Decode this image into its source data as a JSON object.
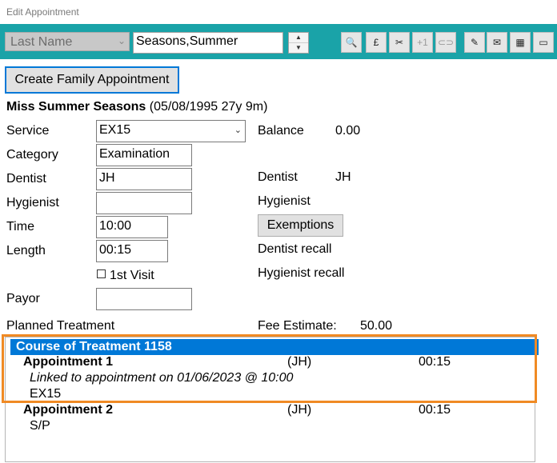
{
  "window": {
    "title": "Edit Appointment"
  },
  "toolbar": {
    "search_type": "Last Name",
    "search_value": "Seasons,Summer",
    "buttons": [
      {
        "name": "search-icon",
        "glyph": "🔍"
      },
      {
        "name": "pound-icon",
        "glyph": "£"
      },
      {
        "name": "scissors-icon",
        "glyph": "✂"
      },
      {
        "name": "plus-one-icon",
        "glyph": "+1"
      },
      {
        "name": "link-icon",
        "glyph": "⊂⊃"
      },
      {
        "name": "pen-icon",
        "glyph": "✎"
      },
      {
        "name": "envelope-icon",
        "glyph": "✉"
      },
      {
        "name": "calendar-icon",
        "glyph": "▦"
      },
      {
        "name": "card-icon",
        "glyph": "▭"
      }
    ]
  },
  "actions": {
    "family_appointment": "Create Family Appointment"
  },
  "patient": {
    "name": "Miss Summer Seasons",
    "dob": "(05/08/1995 27y 9m)"
  },
  "form": {
    "service_label": "Service",
    "service_value": "EX15",
    "category_label": "Category",
    "category_value": "Examination",
    "dentist_label": "Dentist",
    "dentist_value": "JH",
    "hygienist_label": "Hygienist",
    "hygienist_value": "",
    "time_label": "Time",
    "time_value": "10:00",
    "length_label": "Length",
    "length_value": "00:15",
    "first_visit_label": "1st Visit",
    "payor_label": "Payor",
    "payor_value": "",
    "planned_label": "Planned Treatment"
  },
  "summary": {
    "balance_label": "Balance",
    "balance_value": "0.00",
    "dentist_label": "Dentist",
    "dentist_value": "JH",
    "hygienist_label": "Hygienist",
    "exemptions_label": "Exemptions",
    "dentist_recall_label": "Dentist recall",
    "hygienist_recall_label": "Hygienist recall",
    "fee_label": "Fee Estimate:",
    "fee_value": "50.00"
  },
  "treatment": {
    "course_title": "Course of Treatment 1158",
    "appointments": [
      {
        "title": "Appointment 1",
        "clinician": "(JH)",
        "length": "00:15",
        "note": "Linked to appointment on 01/06/2023 @ 10:00",
        "items": "EX15"
      },
      {
        "title": "Appointment 2",
        "clinician": "(JH)",
        "length": "00:15",
        "note": "",
        "items": "S/P"
      }
    ]
  },
  "colors": {
    "toolbar": "#1aa3a8",
    "selection": "#0078d7",
    "highlight": "#f08a24"
  }
}
